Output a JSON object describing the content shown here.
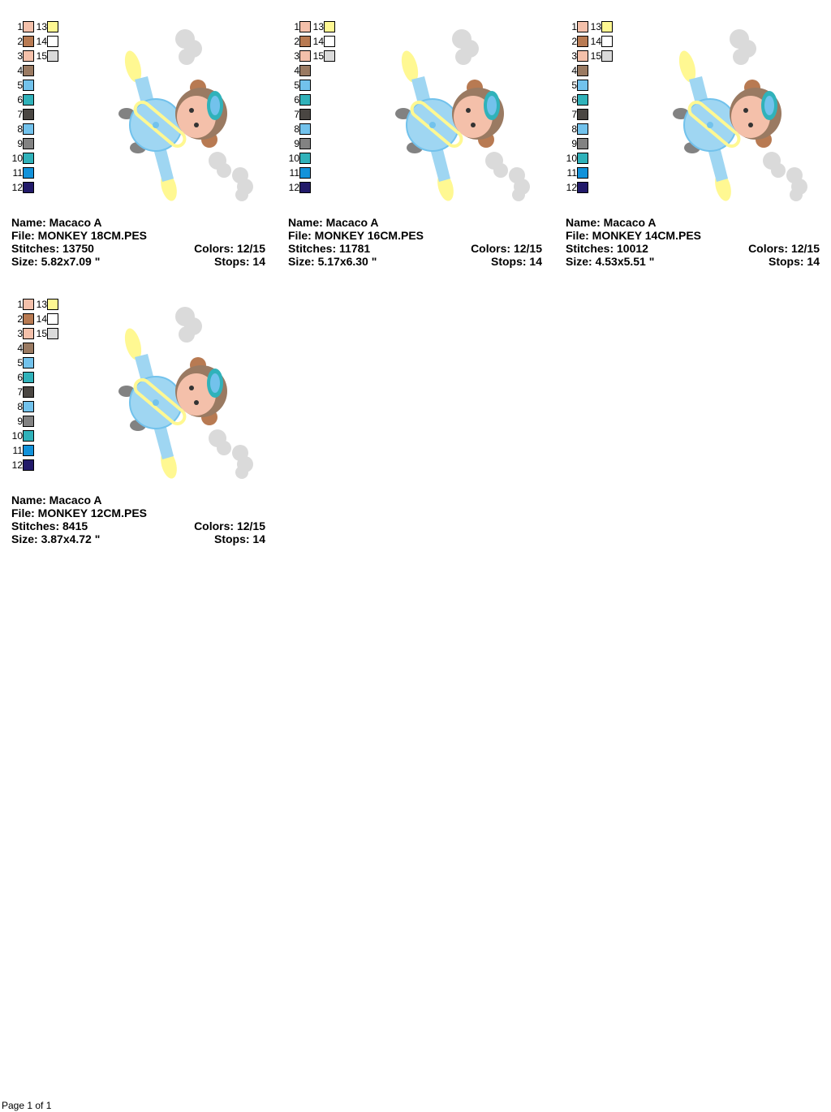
{
  "thread_colors": [
    {
      "n": "1",
      "color": "#f4c0aa"
    },
    {
      "n": "2",
      "color": "#b87a52"
    },
    {
      "n": "3",
      "color": "#f4c0aa"
    },
    {
      "n": "4",
      "color": "#9a7a62"
    },
    {
      "n": "5",
      "color": "#72c2ec"
    },
    {
      "n": "6",
      "color": "#30b2ba"
    },
    {
      "n": "7",
      "color": "#4a4642"
    },
    {
      "n": "8",
      "color": "#72c2ec"
    },
    {
      "n": "9",
      "color": "#828282"
    },
    {
      "n": "10",
      "color": "#30b2ba"
    },
    {
      "n": "11",
      "color": "#1292da"
    },
    {
      "n": "12",
      "color": "#221a6a"
    },
    {
      "n": "13",
      "color": "#fff892"
    },
    {
      "n": "14",
      "color": "#ffffff"
    },
    {
      "n": "15",
      "color": "#dadada"
    }
  ],
  "designs": [
    {
      "name": "Name: Macaco A",
      "file": "File: MONKEY 18CM.PES",
      "stitches": "Stitches: 13750",
      "colors": "Colors: 12/15",
      "size": "Size: 5.82x7.09 \"",
      "stops": "Stops: 14"
    },
    {
      "name": "Name: Macaco A",
      "file": "File: MONKEY 16CM.PES",
      "stitches": "Stitches: 11781",
      "colors": "Colors: 12/15",
      "size": "Size: 5.17x6.30 \"",
      "stops": "Stops: 14"
    },
    {
      "name": "Name: Macaco A",
      "file": "File: MONKEY 14CM.PES",
      "stitches": "Stitches: 10012",
      "colors": "Colors: 12/15",
      "size": "Size: 4.53x5.51 \"",
      "stops": "Stops: 14"
    },
    {
      "name": "Name: Macaco A",
      "file": "File: MONKEY 12CM.PES",
      "stitches": "Stitches: 8415",
      "colors": "Colors: 12/15",
      "size": "Size: 3.87x4.72 \"",
      "stops": "Stops: 14"
    }
  ],
  "footer": "Page 1 of 1"
}
